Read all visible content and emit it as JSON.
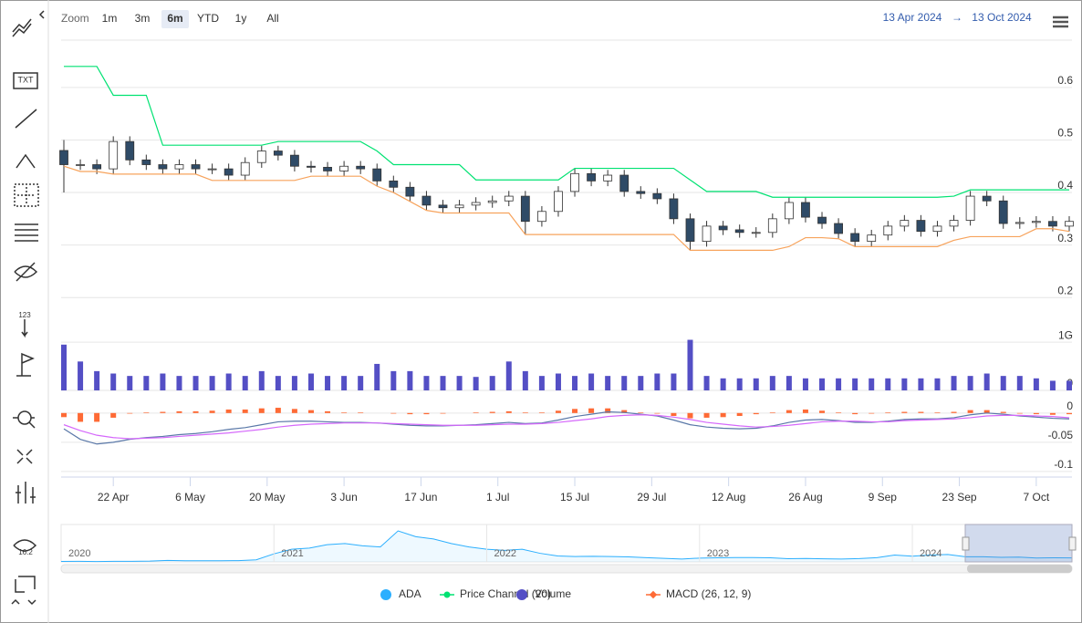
{
  "toolbar": {
    "labels": [
      "TXT",
      "123",
      "16.2"
    ]
  },
  "range_selector": {
    "label": "Zoom",
    "buttons": [
      "1m",
      "3m",
      "6m",
      "YTD",
      "1y",
      "All"
    ],
    "selected": 2,
    "from": "13 Apr 2024",
    "arrow": "→",
    "to": "13 Oct 2024"
  },
  "chart_data": {
    "type": "stock",
    "x": [
      "2024-04-13",
      "2024-04-16",
      "2024-04-19",
      "2024-04-22",
      "2024-04-25",
      "2024-04-28",
      "2024-05-01",
      "2024-05-04",
      "2024-05-07",
      "2024-05-10",
      "2024-05-13",
      "2024-05-16",
      "2024-05-19",
      "2024-05-22",
      "2024-05-25",
      "2024-05-28",
      "2024-05-31",
      "2024-06-03",
      "2024-06-06",
      "2024-06-09",
      "2024-06-12",
      "2024-06-15",
      "2024-06-18",
      "2024-06-21",
      "2024-06-24",
      "2024-06-27",
      "2024-06-30",
      "2024-07-03",
      "2024-07-06",
      "2024-07-09",
      "2024-07-12",
      "2024-07-15",
      "2024-07-18",
      "2024-07-21",
      "2024-07-24",
      "2024-07-27",
      "2024-07-30",
      "2024-08-02",
      "2024-08-05",
      "2024-08-08",
      "2024-08-11",
      "2024-08-14",
      "2024-08-17",
      "2024-08-20",
      "2024-08-23",
      "2024-08-26",
      "2024-08-29",
      "2024-09-01",
      "2024-09-04",
      "2024-09-07",
      "2024-09-10",
      "2024-09-13",
      "2024-09-16",
      "2024-09-19",
      "2024-09-22",
      "2024-09-25",
      "2024-09-28",
      "2024-10-01",
      "2024-10-04",
      "2024-10-07",
      "2024-10-10",
      "2024-10-13"
    ],
    "xlim": [
      "2024-04-13",
      "2024-10-13"
    ],
    "xticks": [
      {
        "value": "2024-04-22",
        "label": "22 Apr"
      },
      {
        "value": "2024-05-06",
        "label": "6 May"
      },
      {
        "value": "2024-05-20",
        "label": "20 May"
      },
      {
        "value": "2024-06-03",
        "label": "3 Jun"
      },
      {
        "value": "2024-06-17",
        "label": "17 Jun"
      },
      {
        "value": "2024-07-01",
        "label": "1 Jul"
      },
      {
        "value": "2024-07-15",
        "label": "15 Jul"
      },
      {
        "value": "2024-07-29",
        "label": "29 Jul"
      },
      {
        "value": "2024-08-12",
        "label": "12 Aug"
      },
      {
        "value": "2024-08-26",
        "label": "26 Aug"
      },
      {
        "value": "2024-09-09",
        "label": "9 Sep"
      },
      {
        "value": "2024-09-23",
        "label": "23 Sep"
      },
      {
        "value": "2024-10-07",
        "label": "7 Oct"
      }
    ],
    "panes": [
      {
        "type": "candlestick",
        "ylim": [
          0.19,
          0.69
        ],
        "yticks": [
          0.2,
          0.3,
          0.4,
          0.5,
          0.6
        ],
        "series": [
          {
            "name": "ADA",
            "color": "#2caffe",
            "up_color": "#ffffff",
            "down_color": "#2f4b67",
            "open": [
              0.48,
              0.453,
              0.453,
              0.445,
              0.497,
              0.462,
              0.453,
              0.445,
              0.453,
              0.445,
              0.445,
              0.433,
              0.457,
              0.479,
              0.471,
              0.45,
              0.448,
              0.441,
              0.45,
              0.445,
              0.422,
              0.41,
              0.393,
              0.376,
              0.371,
              0.376,
              0.381,
              0.384,
              0.393,
              0.345,
              0.364,
              0.402,
              0.436,
              0.422,
              0.433,
              0.402,
              0.398,
              0.388,
              0.35,
              0.307,
              0.336,
              0.329,
              0.324,
              0.324,
              0.35,
              0.381,
              0.353,
              0.341,
              0.322,
              0.307,
              0.319,
              0.336,
              0.347,
              0.326,
              0.336,
              0.347,
              0.393,
              0.384,
              0.341,
              0.343,
              0.345,
              0.336
            ],
            "high": [
              0.5,
              0.463,
              0.463,
              0.507,
              0.507,
              0.472,
              0.463,
              0.463,
              0.463,
              0.455,
              0.455,
              0.467,
              0.489,
              0.489,
              0.481,
              0.46,
              0.458,
              0.46,
              0.46,
              0.455,
              0.432,
              0.42,
              0.403,
              0.386,
              0.386,
              0.391,
              0.394,
              0.403,
              0.403,
              0.374,
              0.412,
              0.446,
              0.446,
              0.443,
              0.443,
              0.412,
              0.408,
              0.398,
              0.36,
              0.346,
              0.346,
              0.339,
              0.334,
              0.36,
              0.391,
              0.391,
              0.363,
              0.351,
              0.332,
              0.329,
              0.346,
              0.357,
              0.357,
              0.346,
              0.357,
              0.403,
              0.403,
              0.394,
              0.353,
              0.355,
              0.355,
              0.355
            ],
            "low": [
              0.4,
              0.443,
              0.435,
              0.435,
              0.452,
              0.443,
              0.435,
              0.435,
              0.435,
              0.435,
              0.423,
              0.423,
              0.447,
              0.461,
              0.44,
              0.438,
              0.431,
              0.431,
              0.435,
              0.412,
              0.4,
              0.383,
              0.366,
              0.361,
              0.361,
              0.366,
              0.371,
              0.374,
              0.32,
              0.335,
              0.354,
              0.392,
              0.412,
              0.412,
              0.392,
              0.388,
              0.378,
              0.34,
              0.29,
              0.297,
              0.319,
              0.314,
              0.314,
              0.314,
              0.34,
              0.343,
              0.331,
              0.312,
              0.297,
              0.297,
              0.309,
              0.326,
              0.316,
              0.316,
              0.326,
              0.337,
              0.374,
              0.331,
              0.331,
              0.333,
              0.326,
              0.326
            ],
            "close": [
              0.453,
              0.453,
              0.445,
              0.497,
              0.462,
              0.453,
              0.445,
              0.453,
              0.445,
              0.445,
              0.433,
              0.457,
              0.479,
              0.471,
              0.45,
              0.448,
              0.441,
              0.45,
              0.445,
              0.422,
              0.41,
              0.393,
              0.376,
              0.371,
              0.376,
              0.381,
              0.384,
              0.393,
              0.345,
              0.364,
              0.402,
              0.436,
              0.422,
              0.433,
              0.402,
              0.398,
              0.388,
              0.35,
              0.307,
              0.336,
              0.329,
              0.324,
              0.324,
              0.35,
              0.381,
              0.353,
              0.341,
              0.322,
              0.307,
              0.319,
              0.336,
              0.347,
              0.326,
              0.336,
              0.347,
              0.393,
              0.384,
              0.341,
              0.343,
              0.345,
              0.336,
              0.345
            ]
          },
          {
            "name": "Price Channel (20)",
            "color": "#00e272",
            "lower_color": "#f7a35c",
            "top": [
              0.64,
              0.64,
              0.64,
              0.585,
              0.585,
              0.585,
              0.49,
              0.49,
              0.49,
              0.49,
              0.49,
              0.49,
              0.49,
              0.497,
              0.497,
              0.497,
              0.497,
              0.497,
              0.497,
              0.479,
              0.453,
              0.453,
              0.453,
              0.453,
              0.453,
              0.424,
              0.424,
              0.424,
              0.424,
              0.424,
              0.424,
              0.446,
              0.446,
              0.446,
              0.446,
              0.446,
              0.446,
              0.446,
              0.424,
              0.402,
              0.402,
              0.402,
              0.402,
              0.391,
              0.391,
              0.391,
              0.391,
              0.391,
              0.391,
              0.391,
              0.391,
              0.391,
              0.391,
              0.391,
              0.393,
              0.405,
              0.405,
              0.405,
              0.405,
              0.405,
              0.405,
              0.405
            ],
            "bottom": [
              0.45,
              0.44,
              0.44,
              0.435,
              0.435,
              0.435,
              0.435,
              0.435,
              0.435,
              0.423,
              0.423,
              0.423,
              0.423,
              0.423,
              0.423,
              0.431,
              0.431,
              0.431,
              0.431,
              0.412,
              0.4,
              0.383,
              0.366,
              0.361,
              0.361,
              0.361,
              0.361,
              0.361,
              0.32,
              0.32,
              0.32,
              0.32,
              0.32,
              0.32,
              0.32,
              0.32,
              0.32,
              0.32,
              0.29,
              0.29,
              0.29,
              0.29,
              0.29,
              0.29,
              0.297,
              0.314,
              0.314,
              0.312,
              0.297,
              0.297,
              0.297,
              0.297,
              0.297,
              0.297,
              0.309,
              0.316,
              0.316,
              0.316,
              0.316,
              0.331,
              0.331,
              0.326
            ]
          }
        ]
      },
      {
        "type": "column",
        "ylim": [
          0,
          1060000000.0
        ],
        "yticks": [
          0,
          {
            "value": 1000000000.0,
            "label": "1G"
          }
        ],
        "series": [
          {
            "name": "Volume",
            "color": "#544fc5",
            "values": [
              950000000.0,
              600000000.0,
              400000000.0,
              350000000.0,
              300000000.0,
              300000000.0,
              350000000.0,
              300000000.0,
              300000000.0,
              300000000.0,
              350000000.0,
              300000000.0,
              400000000.0,
              300000000.0,
              300000000.0,
              350000000.0,
              300000000.0,
              300000000.0,
              300000000.0,
              550000000.0,
              400000000.0,
              400000000.0,
              300000000.0,
              300000000.0,
              300000000.0,
              280000000.0,
              300000000.0,
              600000000.0,
              400000000.0,
              300000000.0,
              350000000.0,
              300000000.0,
              350000000.0,
              300000000.0,
              300000000.0,
              300000000.0,
              350000000.0,
              350000000.0,
              1050000000.0,
              300000000.0,
              250000000.0,
              250000000.0,
              250000000.0,
              300000000.0,
              300000000.0,
              250000000.0,
              250000000.0,
              250000000.0,
              250000000.0,
              250000000.0,
              250000000.0,
              250000000.0,
              250000000.0,
              250000000.0,
              300000000.0,
              300000000.0,
              350000000.0,
              300000000.0,
              300000000.0,
              250000000.0,
              200000000.0,
              200000000.0
            ]
          }
        ]
      },
      {
        "type": "macd",
        "ylim": [
          -0.108,
          0.02
        ],
        "yticks": [
          0,
          -0.05,
          -0.1
        ],
        "series": [
          {
            "name": "MACD (26, 12, 9)",
            "color": "#fe6a35",
            "macd_color": "#5a78a8",
            "signal_color": "#d568fb",
            "macd": [
              -0.027,
              -0.045,
              -0.053,
              -0.05,
              -0.045,
              -0.042,
              -0.04,
              -0.037,
              -0.035,
              -0.032,
              -0.028,
              -0.025,
              -0.02,
              -0.015,
              -0.014,
              -0.014,
              -0.015,
              -0.016,
              -0.016,
              -0.017,
              -0.019,
              -0.021,
              -0.022,
              -0.022,
              -0.021,
              -0.02,
              -0.018,
              -0.016,
              -0.018,
              -0.017,
              -0.012,
              -0.006,
              -0.002,
              0.002,
              0.001,
              -0.002,
              -0.005,
              -0.012,
              -0.02,
              -0.024,
              -0.026,
              -0.027,
              -0.026,
              -0.022,
              -0.016,
              -0.012,
              -0.011,
              -0.013,
              -0.016,
              -0.016,
              -0.014,
              -0.011,
              -0.01,
              -0.01,
              -0.008,
              -0.003,
              0,
              -0.002,
              -0.005,
              -0.007,
              -0.009,
              -0.01
            ],
            "signal": [
              -0.02,
              -0.03,
              -0.038,
              -0.042,
              -0.044,
              -0.043,
              -0.042,
              -0.04,
              -0.038,
              -0.036,
              -0.034,
              -0.031,
              -0.028,
              -0.024,
              -0.021,
              -0.019,
              -0.018,
              -0.017,
              -0.017,
              -0.017,
              -0.018,
              -0.019,
              -0.02,
              -0.021,
              -0.021,
              -0.021,
              -0.02,
              -0.019,
              -0.019,
              -0.018,
              -0.016,
              -0.013,
              -0.01,
              -0.006,
              -0.004,
              -0.003,
              -0.004,
              -0.007,
              -0.011,
              -0.016,
              -0.019,
              -0.022,
              -0.024,
              -0.023,
              -0.021,
              -0.018,
              -0.015,
              -0.014,
              -0.014,
              -0.015,
              -0.015,
              -0.013,
              -0.012,
              -0.011,
              -0.01,
              -0.008,
              -0.005,
              -0.004,
              -0.004,
              -0.005,
              -0.006,
              -0.008
            ],
            "histogram": [
              -0.007,
              -0.015,
              -0.015,
              -0.008,
              -0.001,
              0.001,
              0.002,
              0.003,
              0.003,
              0.004,
              0.006,
              0.006,
              0.008,
              0.009,
              0.007,
              0.005,
              0.003,
              0.001,
              0.001,
              0,
              -0.001,
              -0.002,
              -0.002,
              -0.001,
              0,
              0.001,
              0.002,
              0.003,
              0.001,
              0.001,
              0.004,
              0.007,
              0.008,
              0.008,
              0.005,
              0.001,
              -0.001,
              -0.005,
              -0.009,
              -0.008,
              -0.007,
              -0.005,
              -0.002,
              0.001,
              0.005,
              0.006,
              0.004,
              0.001,
              -0.002,
              -0.001,
              0.001,
              0.002,
              0.002,
              0.001,
              0.002,
              0.005,
              0.005,
              0.002,
              -0.001,
              -0.002,
              -0.003,
              -0.002
            ]
          }
        ]
      }
    ],
    "navigator": {
      "labels": [
        "2020",
        "2021",
        "2022",
        "2023",
        "2024"
      ],
      "ylim": [
        0,
        3.1
      ],
      "color": "#2caffe",
      "values": [
        0.04,
        0.05,
        0.03,
        0.05,
        0.05,
        0.07,
        0.13,
        0.1,
        0.1,
        0.1,
        0.11,
        0.18,
        0.7,
        1.1,
        1.2,
        1.5,
        1.6,
        1.4,
        1.3,
        2.7,
        2.2,
        2.0,
        1.6,
        1.3,
        1.1,
        1.0,
        1.1,
        0.75,
        0.52,
        0.47,
        0.49,
        0.47,
        0.44,
        0.37,
        0.31,
        0.25,
        0.33,
        0.36,
        0.38,
        0.38,
        0.36,
        0.28,
        0.3,
        0.27,
        0.25,
        0.29,
        0.37,
        0.6,
        0.5,
        0.6,
        0.65,
        0.45,
        0.45,
        0.4,
        0.42,
        0.34,
        0.36,
        0.35
      ]
    }
  }
}
